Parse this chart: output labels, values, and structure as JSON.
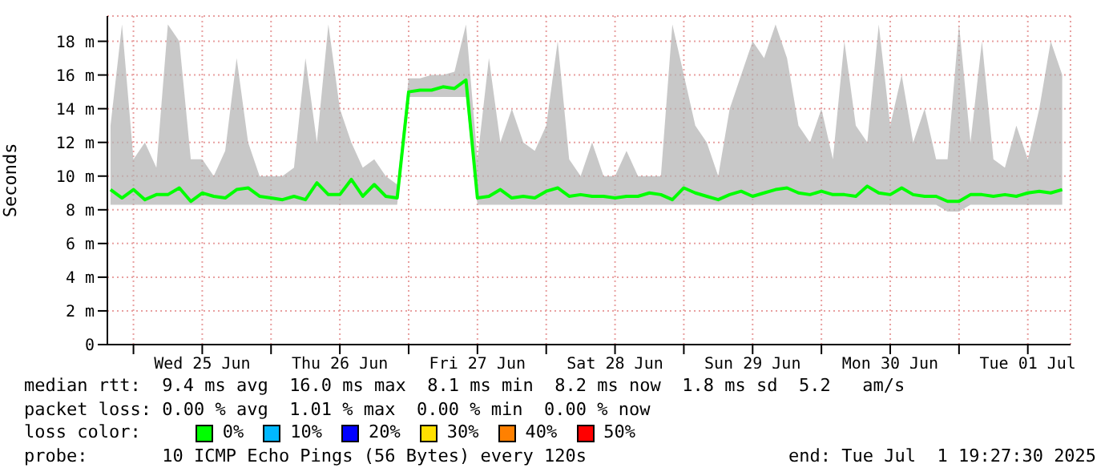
{
  "chart_data": {
    "type": "line",
    "ylabel": "Seconds",
    "x": [
      "2025-06-24T20:00",
      "2025-06-24T22:00",
      "2025-06-25T00:00",
      "2025-06-25T02:00",
      "2025-06-25T04:00",
      "2025-06-25T06:00",
      "2025-06-25T08:00",
      "2025-06-25T10:00",
      "2025-06-25T12:00",
      "2025-06-25T14:00",
      "2025-06-25T16:00",
      "2025-06-25T18:00",
      "2025-06-25T20:00",
      "2025-06-25T22:00",
      "2025-06-26T00:00",
      "2025-06-26T02:00",
      "2025-06-26T04:00",
      "2025-06-26T06:00",
      "2025-06-26T08:00",
      "2025-06-26T10:00",
      "2025-06-26T12:00",
      "2025-06-26T14:00",
      "2025-06-26T16:00",
      "2025-06-26T18:00",
      "2025-06-26T20:00",
      "2025-06-26T22:00",
      "2025-06-27T00:00",
      "2025-06-27T02:00",
      "2025-06-27T04:00",
      "2025-06-27T06:00",
      "2025-06-27T08:00",
      "2025-06-27T10:00",
      "2025-06-27T12:00",
      "2025-06-27T14:00",
      "2025-06-27T16:00",
      "2025-06-27T18:00",
      "2025-06-27T20:00",
      "2025-06-27T22:00",
      "2025-06-28T00:00",
      "2025-06-28T02:00",
      "2025-06-28T04:00",
      "2025-06-28T06:00",
      "2025-06-28T08:00",
      "2025-06-28T10:00",
      "2025-06-28T12:00",
      "2025-06-28T14:00",
      "2025-06-28T16:00",
      "2025-06-28T18:00",
      "2025-06-28T20:00",
      "2025-06-28T22:00",
      "2025-06-29T00:00",
      "2025-06-29T02:00",
      "2025-06-29T04:00",
      "2025-06-29T06:00",
      "2025-06-29T08:00",
      "2025-06-29T10:00",
      "2025-06-29T12:00",
      "2025-06-29T14:00",
      "2025-06-29T16:00",
      "2025-06-29T18:00",
      "2025-06-29T20:00",
      "2025-06-29T22:00",
      "2025-06-30T00:00",
      "2025-06-30T02:00",
      "2025-06-30T04:00",
      "2025-06-30T06:00",
      "2025-06-30T08:00",
      "2025-06-30T10:00",
      "2025-06-30T12:00",
      "2025-06-30T14:00",
      "2025-06-30T16:00",
      "2025-06-30T18:00",
      "2025-06-30T20:00",
      "2025-06-30T22:00",
      "2025-07-01T00:00",
      "2025-07-01T02:00",
      "2025-07-01T04:00",
      "2025-07-01T06:00",
      "2025-07-01T08:00",
      "2025-07-01T10:00",
      "2025-07-01T12:00",
      "2025-07-01T14:00",
      "2025-07-01T16:00",
      "2025-07-01T18:00"
    ],
    "series": [
      {
        "color": "#00ff00",
        "values": [
          9.2,
          8.7,
          9.2,
          8.6,
          8.9,
          8.9,
          9.3,
          8.5,
          9.0,
          8.8,
          8.7,
          9.2,
          9.3,
          8.8,
          8.7,
          8.6,
          8.8,
          8.6,
          9.6,
          8.9,
          8.9,
          9.8,
          8.8,
          9.5,
          8.8,
          8.7,
          15.0,
          15.1,
          15.1,
          15.3,
          15.2,
          15.7,
          8.7,
          8.8,
          9.2,
          8.7,
          8.8,
          8.7,
          9.1,
          9.3,
          8.8,
          8.9,
          8.8,
          8.8,
          8.7,
          8.8,
          8.8,
          9.0,
          8.9,
          8.6,
          9.3,
          9.0,
          8.8,
          8.6,
          8.9,
          9.1,
          8.8,
          9.0,
          9.2,
          9.3,
          9.0,
          8.9,
          9.1,
          8.9,
          8.9,
          8.8,
          9.4,
          9.0,
          8.9,
          9.3,
          8.9,
          8.8,
          8.8,
          8.5,
          8.5,
          8.9,
          8.9,
          8.8,
          8.9,
          8.8,
          9.0,
          9.1,
          9.0,
          9.2
        ],
        "lower": [
          8.3,
          8.3,
          8.3,
          8.3,
          8.3,
          8.3,
          8.3,
          8.3,
          8.3,
          8.3,
          8.3,
          8.3,
          8.3,
          8.3,
          8.3,
          8.3,
          8.3,
          8.3,
          8.3,
          8.3,
          8.3,
          8.3,
          8.3,
          8.3,
          8.3,
          8.3,
          14.7,
          14.7,
          14.7,
          14.7,
          14.7,
          14.7,
          8.3,
          8.3,
          8.3,
          8.3,
          8.3,
          8.3,
          8.3,
          8.3,
          8.3,
          8.3,
          8.3,
          8.3,
          8.3,
          8.3,
          8.3,
          8.3,
          8.3,
          8.3,
          8.3,
          8.3,
          8.3,
          8.3,
          8.3,
          8.3,
          8.3,
          8.3,
          8.3,
          8.3,
          8.3,
          8.3,
          8.3,
          8.3,
          8.3,
          8.3,
          8.3,
          8.3,
          8.3,
          8.3,
          8.3,
          8.3,
          8.3,
          7.9,
          7.9,
          8.3,
          8.3,
          8.3,
          8.3,
          8.3,
          8.3,
          8.3,
          8.3,
          8.3
        ],
        "upper": [
          13,
          19,
          11,
          12,
          10.5,
          19,
          18,
          11,
          11,
          10,
          11.5,
          17,
          12,
          10,
          10,
          10,
          10.5,
          17,
          12,
          19,
          14,
          12,
          10.5,
          11,
          10,
          9.5,
          15.8,
          15.8,
          16,
          16,
          16.2,
          19,
          11,
          17,
          12,
          14,
          12,
          11.5,
          13,
          18,
          11,
          10,
          12,
          10,
          10,
          11.5,
          10,
          10,
          10,
          19,
          16,
          13,
          12,
          10,
          14,
          16,
          18,
          17,
          19,
          17,
          13,
          12,
          14,
          11,
          18,
          13,
          12,
          19,
          13,
          16,
          12,
          14,
          11,
          11,
          19,
          12,
          18,
          11,
          10.5,
          13,
          11,
          14,
          18,
          16
        ]
      }
    ],
    "xlim": [
      "2025-06-24T19:27",
      "2025-07-01T19:27"
    ],
    "xticks": [
      {
        "value": "2025-06-25T00:00",
        "label": null
      },
      {
        "value": "2025-06-25T12:00",
        "label": "Wed 25 Jun"
      },
      {
        "value": "2025-06-26T00:00",
        "label": null
      },
      {
        "value": "2025-06-26T12:00",
        "label": "Thu 26 Jun"
      },
      {
        "value": "2025-06-27T00:00",
        "label": null
      },
      {
        "value": "2025-06-27T12:00",
        "label": "Fri 27 Jun"
      },
      {
        "value": "2025-06-28T00:00",
        "label": null
      },
      {
        "value": "2025-06-28T12:00",
        "label": "Sat 28 Jun"
      },
      {
        "value": "2025-06-29T00:00",
        "label": null
      },
      {
        "value": "2025-06-29T12:00",
        "label": "Sun 29 Jun"
      },
      {
        "value": "2025-06-30T00:00",
        "label": null
      },
      {
        "value": "2025-06-30T12:00",
        "label": "Mon 30 Jun"
      },
      {
        "value": "2025-07-01T00:00",
        "label": null
      },
      {
        "value": "2025-07-01T12:00",
        "label": "Tue 01 Jul"
      }
    ],
    "ylim": [
      0,
      19.5
    ],
    "yticks": [
      0,
      {
        "value": 2,
        "label": "2 m"
      },
      {
        "value": 4,
        "label": "4 m"
      },
      {
        "value": 6,
        "label": "6 m"
      },
      {
        "value": 8,
        "label": "8 m"
      },
      {
        "value": 10,
        "label": "10 m"
      },
      {
        "value": 12,
        "label": "12 m"
      },
      {
        "value": 14,
        "label": "14 m"
      },
      {
        "value": 16,
        "label": "16 m"
      },
      {
        "value": 18,
        "label": "18 m"
      }
    ],
    "grid": true,
    "annotations": [
      "median rtt:  9.4 ms avg  16.0 ms max  8.1 ms min  8.2 ms now  1.8 ms sd  5.2   am/s",
      "packet loss: 0.00 % avg  1.01 % max  0.00 % min  0.00 % now",
      "loss color:",
      "0%",
      "10%",
      "20%",
      "30%",
      "40%",
      "50%",
      "probe:       10 ICMP Echo Pings (56 Bytes) every 120s",
      "end: Tue Jul  1 19:27:30 2025"
    ]
  }
}
